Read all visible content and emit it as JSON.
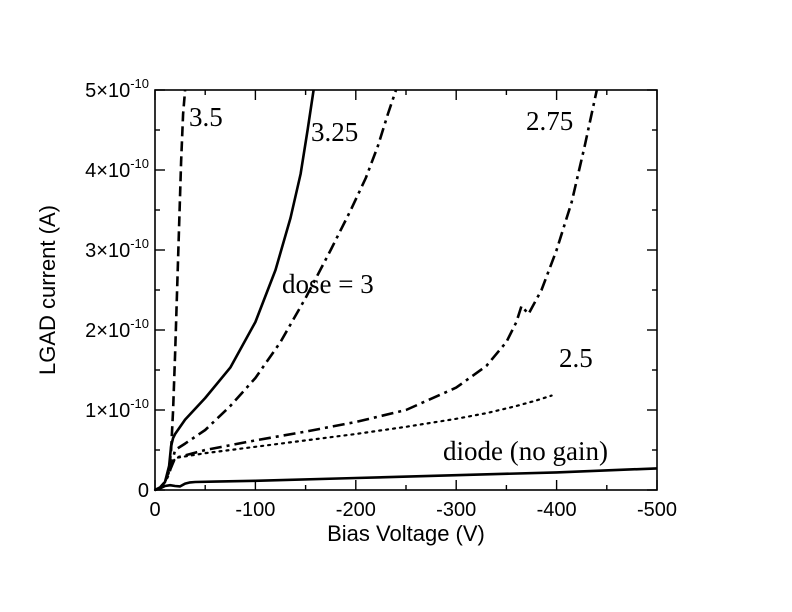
{
  "chart_data": {
    "type": "line",
    "title": "",
    "xlabel": "Bias Voltage (V)",
    "ylabel": "LGAD current (A)",
    "xlim": [
      0,
      -500
    ],
    "ylim": [
      0,
      5e-10
    ],
    "grid": false,
    "legend": "none",
    "x_tick_labels": [
      "0",
      "-100",
      "-200",
      "-300",
      "-400",
      "-500"
    ],
    "y_ticks": [
      {
        "mantissa": "0",
        "exponent": ""
      },
      {
        "mantissa": "1×10",
        "exponent": "-10"
      },
      {
        "mantissa": "2×10",
        "exponent": "-10"
      },
      {
        "mantissa": "3×10",
        "exponent": "-10"
      },
      {
        "mantissa": "4×10",
        "exponent": "-10"
      },
      {
        "mantissa": "5×10",
        "exponent": "-10"
      }
    ],
    "series": [
      {
        "label": "3.5",
        "style": "dash",
        "x": [
          0,
          -5,
          -10,
          -14,
          -16,
          -18,
          -20,
          -22,
          -24,
          -26,
          -28,
          -30
        ],
        "y": [
          0,
          2e-12,
          1e-11,
          2.5e-11,
          5e-11,
          1e-10,
          1.7e-10,
          2.5e-10,
          3.3e-10,
          4.1e-10,
          4.7e-10,
          5e-10
        ]
      },
      {
        "label": "3.25",
        "style": "solid",
        "x": [
          0,
          -5,
          -10,
          -14,
          -16,
          -18,
          -20,
          -30,
          -50,
          -75,
          -100,
          -120,
          -135,
          -145,
          -152,
          -158
        ],
        "y": [
          0,
          3e-12,
          1e-11,
          3e-11,
          5.5e-11,
          6.5e-11,
          7e-11,
          8.8e-11,
          1.15e-10,
          1.53e-10,
          2.1e-10,
          2.75e-10,
          3.4e-10,
          3.95e-10,
          4.5e-10,
          5e-10
        ]
      },
      {
        "label": "dose = 3",
        "style": "dashdot",
        "x": [
          0,
          -5,
          -10,
          -14,
          -20,
          -30,
          -50,
          -75,
          -100,
          -125,
          -150,
          -175,
          -195,
          -210,
          -222,
          -232,
          -240
        ],
        "y": [
          0,
          3e-12,
          1e-11,
          2e-11,
          5e-11,
          5.8e-11,
          7.5e-11,
          1.05e-10,
          1.4e-10,
          1.85e-10,
          2.4e-10,
          3e-10,
          3.5e-10,
          3.9e-10,
          4.3e-10,
          4.7e-10,
          5e-10
        ]
      },
      {
        "label": "2.75",
        "style": "dashdot",
        "x": [
          0,
          -5,
          -10,
          -20,
          -50,
          -100,
          -150,
          -200,
          -250,
          -300,
          -330,
          -350,
          -360,
          -365,
          -372,
          -385,
          -400,
          -415,
          -428,
          -440
        ],
        "y": [
          0,
          3e-12,
          1e-11,
          4e-11,
          5e-11,
          6.2e-11,
          7.3e-11,
          8.5e-11,
          1e-10,
          1.28e-10,
          1.55e-10,
          1.85e-10,
          2.1e-10,
          2.3e-10,
          2.2e-10,
          2.5e-10,
          3e-10,
          3.6e-10,
          4.3e-10,
          5e-10
        ]
      },
      {
        "label": "2.5",
        "style": "dot",
        "x": [
          0,
          -5,
          -10,
          -20,
          -50,
          -100,
          -150,
          -200,
          -250,
          -300,
          -330,
          -360,
          -380,
          -395
        ],
        "y": [
          0,
          3e-12,
          1e-11,
          4e-11,
          4.6e-11,
          5.4e-11,
          6.2e-11,
          7e-11,
          7.9e-11,
          8.9e-11,
          9.6e-11,
          1.05e-10,
          1.12e-10,
          1.18e-10
        ]
      },
      {
        "label": "diode (no gain)",
        "style": "solid",
        "x": [
          0,
          -5,
          -10,
          -15,
          -20,
          -25,
          -30,
          -35,
          -40,
          -60,
          -100,
          -200,
          -300,
          -400,
          -500
        ],
        "y": [
          0,
          2e-12,
          5e-12,
          6e-12,
          5e-12,
          4.5e-12,
          8e-12,
          9.5e-12,
          1e-11,
          1.05e-11,
          1.15e-11,
          1.5e-11,
          1.85e-11,
          2.2e-11,
          2.7e-11
        ]
      }
    ]
  }
}
